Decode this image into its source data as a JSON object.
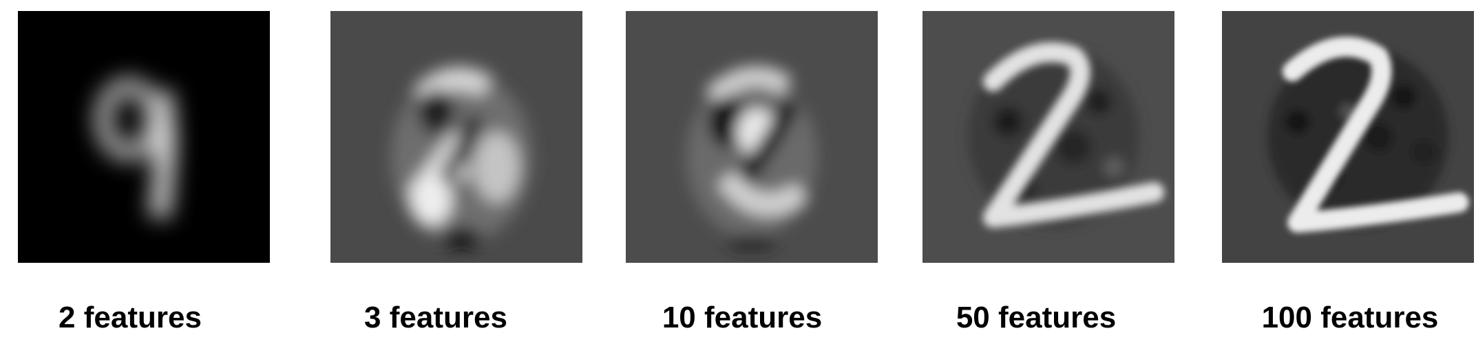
{
  "panels": [
    {
      "caption": "2 features",
      "background": "#000000"
    },
    {
      "caption": "3 features",
      "background": "#4a4a4a"
    },
    {
      "caption": "10 features",
      "background": "#4c4c4c"
    },
    {
      "caption": "50 features",
      "background": "#4d4d4d"
    },
    {
      "caption": "100 features",
      "background": "#434343"
    }
  ]
}
